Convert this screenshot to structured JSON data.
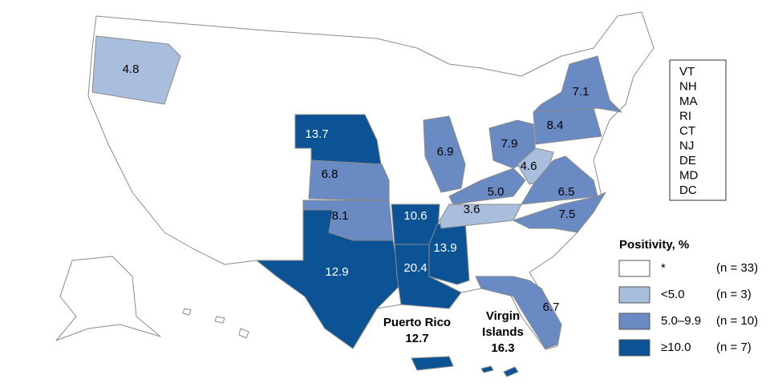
{
  "map": {
    "state_values": [
      {
        "label": "4.8",
        "color": "#a9bddd"
      },
      {
        "label": "13.7",
        "color": "#0b5394"
      },
      {
        "label": "6.8",
        "color": "#6a8ac3"
      },
      {
        "label": "8.1",
        "color": "#6a8ac3"
      },
      {
        "label": "12.9",
        "color": "#0b5394"
      },
      {
        "label": "10.6",
        "color": "#0b5394"
      },
      {
        "label": "20.4",
        "color": "#0b5394"
      },
      {
        "label": "13.9",
        "color": "#0b5394"
      },
      {
        "label": "6.9",
        "color": "#6a8ac3"
      },
      {
        "label": "7.9",
        "color": "#6a8ac3"
      },
      {
        "label": "5.0",
        "color": "#6a8ac3"
      },
      {
        "label": "4.6",
        "color": "#a9bddd"
      },
      {
        "label": "6.5",
        "color": "#6a8ac3"
      },
      {
        "label": "8.4",
        "color": "#6a8ac3"
      },
      {
        "label": "7.1",
        "color": "#6a8ac3"
      },
      {
        "label": "7.5",
        "color": "#6a8ac3"
      },
      {
        "label": "3.6",
        "color": "#a9bddd"
      },
      {
        "label": "6.7",
        "color": "#6a8ac3"
      }
    ],
    "territories": [
      {
        "name_lines": [
          "Puerto Rico"
        ],
        "label": "12.7",
        "color": "#0b5394"
      },
      {
        "name_lines": [
          "Virgin",
          "Islands"
        ],
        "label": "16.3",
        "color": "#0b5394"
      }
    ],
    "small_states": [
      "VT",
      "NH",
      "MA",
      "RI",
      "CT",
      "NJ",
      "DE",
      "MD",
      "DC"
    ],
    "legend": {
      "title": "Positivity, %",
      "items": [
        {
          "label": "*",
          "count": "(n = 33)",
          "color": "#ffffff"
        },
        {
          "label": "<5.0",
          "count": "(n = 3)",
          "color": "#a9bddd"
        },
        {
          "label": "5.0–9.9",
          "count": "(n = 10)",
          "color": "#6a8ac3"
        },
        {
          "label": "≥10.0",
          "count": "(n = 7)",
          "color": "#0b5394"
        }
      ]
    }
  }
}
